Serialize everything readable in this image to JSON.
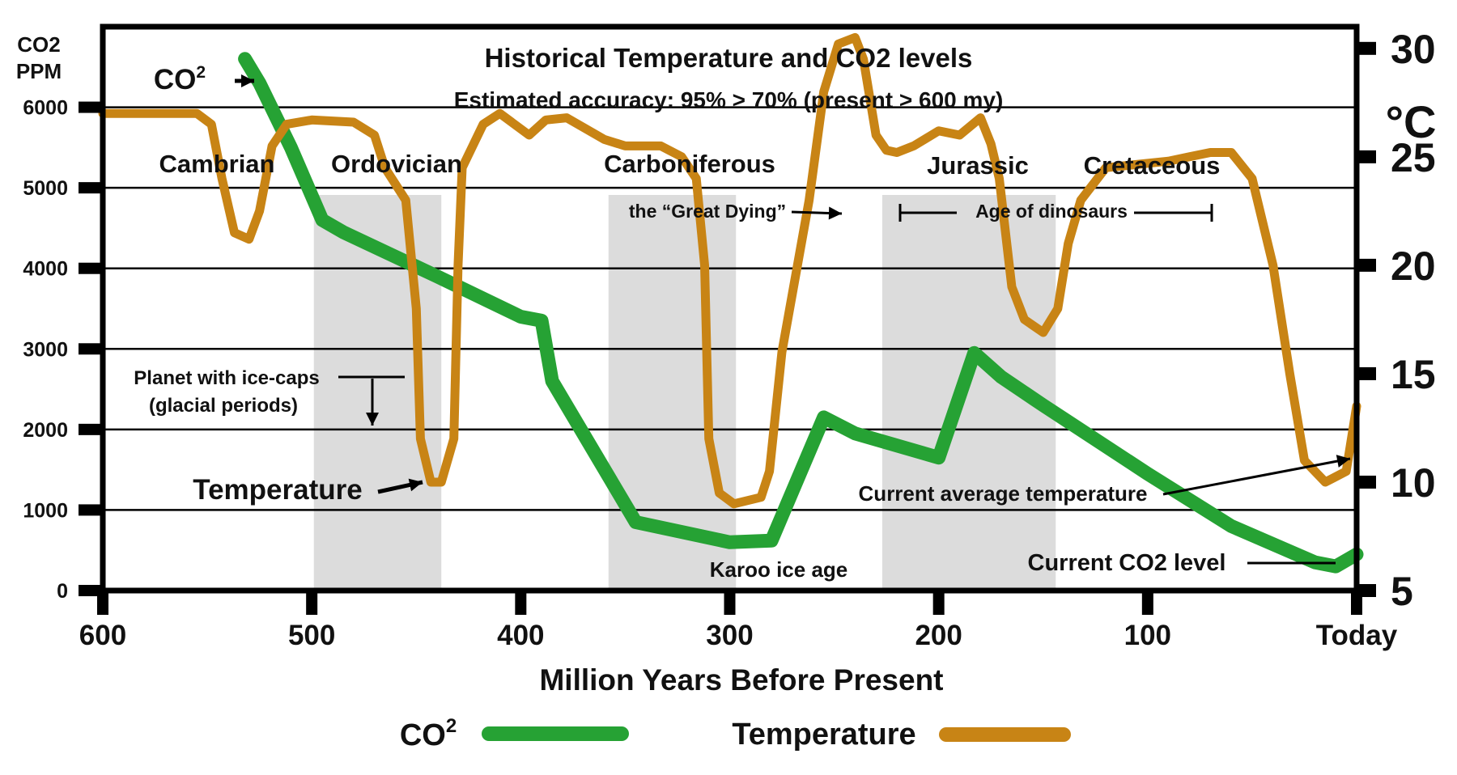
{
  "chart_data": {
    "type": "line",
    "title": "Historical Temperature and CO2 levels",
    "subtitle": "Estimated accuracy: 95% > 70% (present > 600 my)",
    "xlabel": "Million Years Before Present",
    "x_ticks": [
      {
        "value": 600,
        "label": "600"
      },
      {
        "value": 500,
        "label": "500"
      },
      {
        "value": 400,
        "label": "400"
      },
      {
        "value": 300,
        "label": "300"
      },
      {
        "value": 200,
        "label": "200"
      },
      {
        "value": 100,
        "label": "100"
      },
      {
        "value": 0,
        "label": "Today"
      }
    ],
    "xlim": [
      600,
      0
    ],
    "y_left": {
      "label_line1": "CO2",
      "label_line2": "PPM",
      "ylim": [
        0,
        7000
      ],
      "ticks": [
        0,
        1000,
        2000,
        3000,
        4000,
        5000,
        6000
      ]
    },
    "y_right": {
      "unit": "°C",
      "ylim": [
        5,
        31
      ],
      "ticks": [
        5,
        10,
        15,
        20,
        25,
        30
      ]
    },
    "grid": true,
    "series": [
      {
        "name": "CO²",
        "axis": "left",
        "color": "#26a234",
        "points": [
          [
            532,
            6600
          ],
          [
            525,
            6300
          ],
          [
            510,
            5500
          ],
          [
            495,
            4600
          ],
          [
            485,
            4450
          ],
          [
            440,
            3900
          ],
          [
            400,
            3400
          ],
          [
            390,
            3350
          ],
          [
            385,
            2600
          ],
          [
            345,
            850
          ],
          [
            300,
            600
          ],
          [
            280,
            620
          ],
          [
            255,
            2150
          ],
          [
            240,
            1950
          ],
          [
            200,
            1650
          ],
          [
            183,
            2950
          ],
          [
            170,
            2650
          ],
          [
            150,
            2300
          ],
          [
            100,
            1450
          ],
          [
            60,
            800
          ],
          [
            20,
            350
          ],
          [
            10,
            300
          ],
          [
            0,
            450
          ]
        ]
      },
      {
        "name": "Temperature",
        "axis": "right",
        "color": "#c88415",
        "points": [
          [
            600,
            27
          ],
          [
            555,
            27
          ],
          [
            548,
            26.5
          ],
          [
            543,
            24
          ],
          [
            537,
            21.5
          ],
          [
            530,
            21.2
          ],
          [
            525,
            22.5
          ],
          [
            519,
            25.5
          ],
          [
            512,
            26.5
          ],
          [
            500,
            26.7
          ],
          [
            480,
            26.6
          ],
          [
            470,
            26
          ],
          [
            465,
            24.5
          ],
          [
            455,
            23
          ],
          [
            450,
            18
          ],
          [
            448,
            12
          ],
          [
            443,
            10
          ],
          [
            438,
            10
          ],
          [
            432,
            12
          ],
          [
            430,
            20
          ],
          [
            428,
            24.5
          ],
          [
            423,
            25.5
          ],
          [
            418,
            26.5
          ],
          [
            410,
            27
          ],
          [
            396,
            26
          ],
          [
            388,
            26.7
          ],
          [
            378,
            26.8
          ],
          [
            360,
            25.8
          ],
          [
            350,
            25.5
          ],
          [
            333,
            25.5
          ],
          [
            323,
            25
          ],
          [
            316,
            24
          ],
          [
            312,
            20
          ],
          [
            310,
            12
          ],
          [
            305,
            9.5
          ],
          [
            298,
            9
          ],
          [
            285,
            9.3
          ],
          [
            281,
            10.5
          ],
          [
            275,
            16
          ],
          [
            262,
            23
          ],
          [
            255,
            28
          ],
          [
            248,
            30.2
          ],
          [
            240,
            30.5
          ],
          [
            236,
            29.5
          ],
          [
            230,
            26
          ],
          [
            225,
            25.3
          ],
          [
            220,
            25.2
          ],
          [
            212,
            25.5
          ],
          [
            200,
            26.2
          ],
          [
            190,
            26
          ],
          [
            180,
            26.8
          ],
          [
            175,
            25.6
          ],
          [
            171,
            24
          ],
          [
            165,
            19
          ],
          [
            159,
            17.5
          ],
          [
            150,
            16.9
          ],
          [
            143,
            18
          ],
          [
            138,
            21
          ],
          [
            132,
            23
          ],
          [
            120,
            24.5
          ],
          [
            110,
            24.6
          ],
          [
            90,
            24.8
          ],
          [
            80,
            25
          ],
          [
            70,
            25.2
          ],
          [
            60,
            25.2
          ],
          [
            50,
            24
          ],
          [
            40,
            20
          ],
          [
            32,
            15
          ],
          [
            25,
            11
          ],
          [
            15,
            10
          ],
          [
            5,
            10.5
          ],
          [
            0,
            13.5
          ]
        ]
      }
    ],
    "periods": [
      {
        "name": "Cambrian",
        "shaded": false
      },
      {
        "name": "Ordovician",
        "shaded": true,
        "from": 499,
        "to": 438
      },
      {
        "name": "Carboniferous",
        "shaded": true,
        "from": 358,
        "to": 297
      },
      {
        "name": "Jurassic",
        "shaded": true,
        "from": 227,
        "to": 144
      },
      {
        "name": "Cretaceous",
        "shaded": false
      }
    ],
    "annotations": {
      "great_dying": "the “Great Dying”",
      "age_of_dinosaurs": "Age of dinosaurs",
      "planet_ice_caps_line1": "Planet with ice-caps",
      "planet_ice_caps_line2": "(glacial periods)",
      "temperature_label": "Temperature",
      "co2_label_base": "CO",
      "co2_label_sup": "2",
      "karoo": "Karoo ice age",
      "current_avg_temp": "Current average temperature",
      "current_co2": "Current CO2 level"
    },
    "legend": {
      "placement": "bottom",
      "co2_base": "CO",
      "co2_sup": "2",
      "temperature": "Temperature"
    }
  }
}
